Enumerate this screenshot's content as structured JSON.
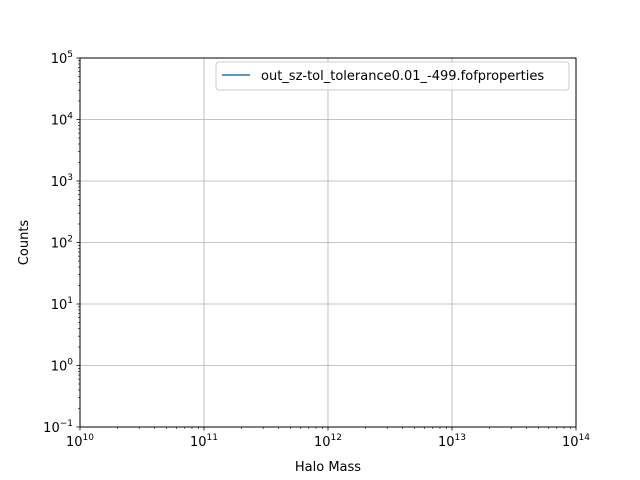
{
  "chart_data": {
    "type": "line",
    "xlabel": "Halo Mass",
    "ylabel": "Counts",
    "x_scale": "log",
    "y_scale": "log",
    "xlim": [
      10000000000.0,
      100000000000000.0
    ],
    "ylim": [
      0.1,
      100000
    ],
    "grid": true,
    "x_ticks": [
      {
        "base": "10",
        "exp": "10",
        "value": 10000000000.0
      },
      {
        "base": "10",
        "exp": "11",
        "value": 100000000000.0
      },
      {
        "base": "10",
        "exp": "12",
        "value": 1000000000000.0
      },
      {
        "base": "10",
        "exp": "13",
        "value": 10000000000000.0
      },
      {
        "base": "10",
        "exp": "14",
        "value": 100000000000000.0
      }
    ],
    "y_ticks": [
      {
        "base": "10",
        "exp": "−1",
        "value": 0.1
      },
      {
        "base": "10",
        "exp": "0",
        "value": 1
      },
      {
        "base": "10",
        "exp": "1",
        "value": 10
      },
      {
        "base": "10",
        "exp": "2",
        "value": 100
      },
      {
        "base": "10",
        "exp": "3",
        "value": 1000
      },
      {
        "base": "10",
        "exp": "4",
        "value": 10000
      },
      {
        "base": "10",
        "exp": "5",
        "value": 100000
      }
    ],
    "legend_position": "top-right",
    "series": [
      {
        "name": "out_sz-tol_tolerance0.01_-499.fofproperties",
        "color": "#1f77b4",
        "x": [],
        "y": []
      }
    ]
  }
}
